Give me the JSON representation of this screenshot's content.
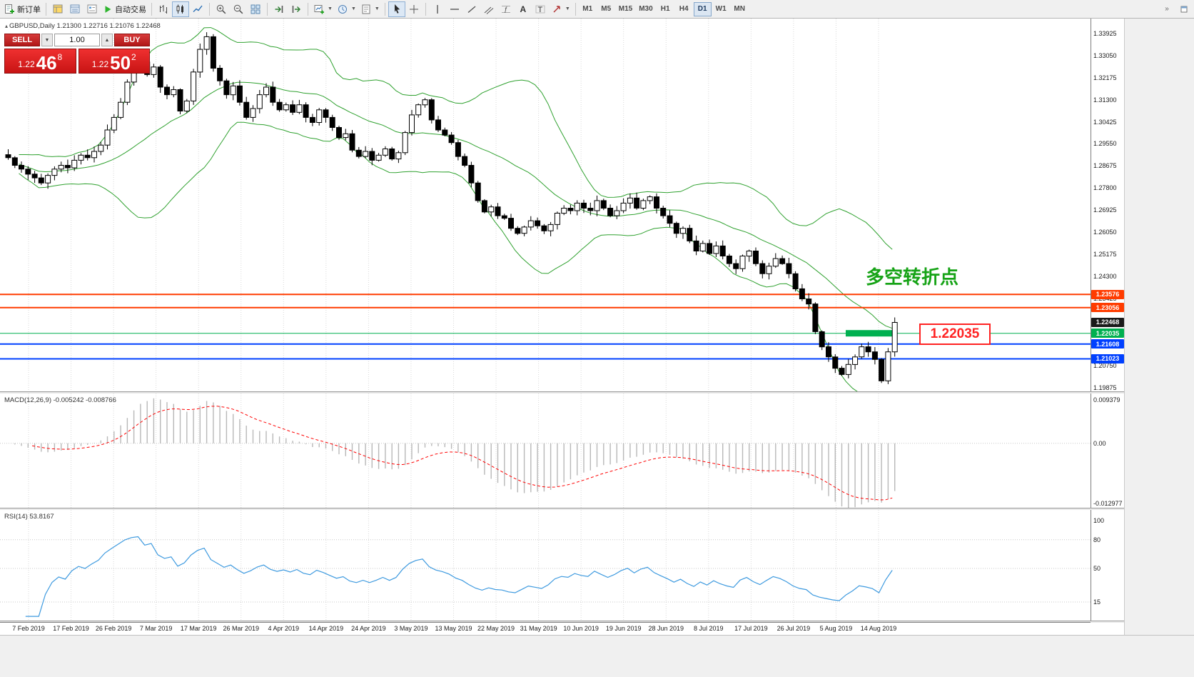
{
  "toolbar": {
    "new_order_label": "新订单",
    "auto_trading_label": "自动交易",
    "timeframes": [
      "M1",
      "M5",
      "M15",
      "M30",
      "H1",
      "H4",
      "D1",
      "W1",
      "MN"
    ],
    "active_timeframe": "D1"
  },
  "trade_panel": {
    "sell_label": "SELL",
    "buy_label": "BUY",
    "volume": "1.00",
    "sell_price_main": "1.22",
    "sell_price_big": "46",
    "sell_price_sup": "8",
    "buy_price_main": "1.22",
    "buy_price_big": "50",
    "buy_price_sup": "2"
  },
  "chart": {
    "symbol_title": "GBPUSD,Daily  1.21300 1.22716 1.21076 1.22468",
    "annotation": "多空转折点",
    "annotation_color": "#16a316",
    "level_label": "1.22035",
    "macd_header": "MACD(12,26,9) -0.005242 -0.008766",
    "rsi_header": "RSI(14) 53.8167"
  },
  "chart_data": {
    "type": "candlestick",
    "symbol": "GBPUSD",
    "timeframe": "Daily",
    "ohlc_display": [
      "1.21300",
      "1.22716",
      "1.21076",
      "1.22468"
    ],
    "x_labels": [
      "7 Feb 2019",
      "17 Feb 2019",
      "26 Feb 2019",
      "7 Mar 2019",
      "17 Mar 2019",
      "26 Mar 2019",
      "4 Apr 2019",
      "14 Apr 2019",
      "24 Apr 2019",
      "3 May 2019",
      "13 May 2019",
      "22 May 2019",
      "31 May 2019",
      "10 Jun 2019",
      "19 Jun 2019",
      "28 Jun 2019",
      "8 Jul 2019",
      "17 Jul 2019",
      "26 Jul 2019",
      "5 Aug 2019",
      "14 Aug 2019"
    ],
    "closes": [
      1.29,
      1.287,
      1.2855,
      1.2835,
      1.282,
      1.28,
      1.283,
      1.2855,
      1.287,
      1.286,
      1.289,
      1.291,
      1.29,
      1.2925,
      1.295,
      1.301,
      1.306,
      1.312,
      1.32,
      1.3255,
      1.328,
      1.323,
      1.326,
      1.318,
      1.315,
      1.317,
      1.3085,
      1.3125,
      1.324,
      1.333,
      1.338,
      1.3255,
      1.3205,
      1.315,
      1.3185,
      1.312,
      1.306,
      1.3095,
      1.315,
      1.318,
      1.312,
      1.309,
      1.311,
      1.308,
      1.311,
      1.306,
      1.304,
      1.309,
      1.306,
      1.302,
      1.298,
      1.2995,
      1.293,
      1.2905,
      1.2925,
      1.289,
      1.291,
      1.2935,
      1.2895,
      1.292,
      1.3,
      1.307,
      1.311,
      1.313,
      1.305,
      1.301,
      1.299,
      1.296,
      1.2905,
      1.287,
      1.28,
      1.273,
      1.2685,
      1.2705,
      1.267,
      1.266,
      1.262,
      1.26,
      1.2625,
      1.265,
      1.263,
      1.261,
      1.2635,
      1.268,
      1.27,
      1.269,
      1.272,
      1.27,
      1.269,
      1.273,
      1.27,
      1.267,
      1.269,
      1.272,
      1.274,
      1.27,
      1.273,
      1.2745,
      1.27,
      1.267,
      1.264,
      1.26,
      1.262,
      1.257,
      1.253,
      1.256,
      1.252,
      1.255,
      1.251,
      1.248,
      1.246,
      1.251,
      1.253,
      1.248,
      1.244,
      1.247,
      1.25,
      1.248,
      1.244,
      1.238,
      1.234,
      1.232,
      1.221,
      1.215,
      1.211,
      1.2065,
      1.204,
      1.208,
      1.211,
      1.215,
      1.213,
      1.21,
      1.2015,
      1.213,
      1.22468
    ],
    "last_close": 1.22468,
    "price_axis_labels": [
      "1.33925",
      "1.33050",
      "1.32175",
      "1.31300",
      "1.30425",
      "1.29550",
      "1.28675",
      "1.27800",
      "1.26925",
      "1.26050",
      "1.25175",
      "1.24300",
      "1.23425",
      "1.22550",
      "1.21675",
      "1.20750",
      "1.19875"
    ],
    "price_tags": [
      {
        "label": "1.23576",
        "value": 1.23576,
        "color": "#ff3c00"
      },
      {
        "label": "1.23056",
        "value": 1.23056,
        "color": "#ff3c00"
      },
      {
        "label": "1.22468",
        "value": 1.22468,
        "color": "#1a1a1a"
      },
      {
        "label": "1.22035",
        "value": 1.22035,
        "color": "#00b050"
      },
      {
        "label": "1.21608",
        "value": 1.21608,
        "color": "#0040ff"
      },
      {
        "label": "1.21023",
        "value": 1.21023,
        "color": "#0040ff"
      }
    ],
    "h_lines": [
      {
        "price": 1.23576,
        "color": "#ff3c00",
        "width": 2,
        "highlight": false
      },
      {
        "price": 1.23056,
        "color": "#ff3c00",
        "width": 2,
        "highlight": false
      },
      {
        "price": 1.22035,
        "color": "#00b050",
        "width": 1,
        "highlight": true
      },
      {
        "price": 1.21608,
        "color": "#0040ff",
        "width": 2,
        "highlight": false
      },
      {
        "price": 1.21023,
        "color": "#0040ff",
        "width": 2,
        "highlight": false
      }
    ],
    "overlays": {
      "bollinger": {
        "period": 20,
        "deviation": 2,
        "color": "#2fa12f"
      }
    },
    "colors": {
      "candle_up": "#ffffff",
      "candle_down": "#000000",
      "wick": "#000000",
      "macd_hist": "#b8b8b8",
      "macd_signal": "#ff0000",
      "rsi": "#3e9adf",
      "grid": "#d9d9d9"
    },
    "macd": {
      "fast": 12,
      "slow": 26,
      "signal": 9,
      "value": -0.005242,
      "signal_value": -0.008766,
      "axis": [
        {
          "label": "0.009379",
          "value": 0.009379
        },
        {
          "label": "0.00",
          "value": 0
        },
        {
          "label": "-0.012977",
          "value": -0.012977
        }
      ]
    },
    "rsi": {
      "period": 14,
      "value": 53.8167,
      "axis": [
        {
          "label": "100",
          "value": 100
        },
        {
          "label": "80",
          "value": 80
        },
        {
          "label": "50",
          "value": 50
        },
        {
          "label": "15",
          "value": 15
        }
      ],
      "levels": [
        80,
        50,
        15
      ]
    }
  }
}
